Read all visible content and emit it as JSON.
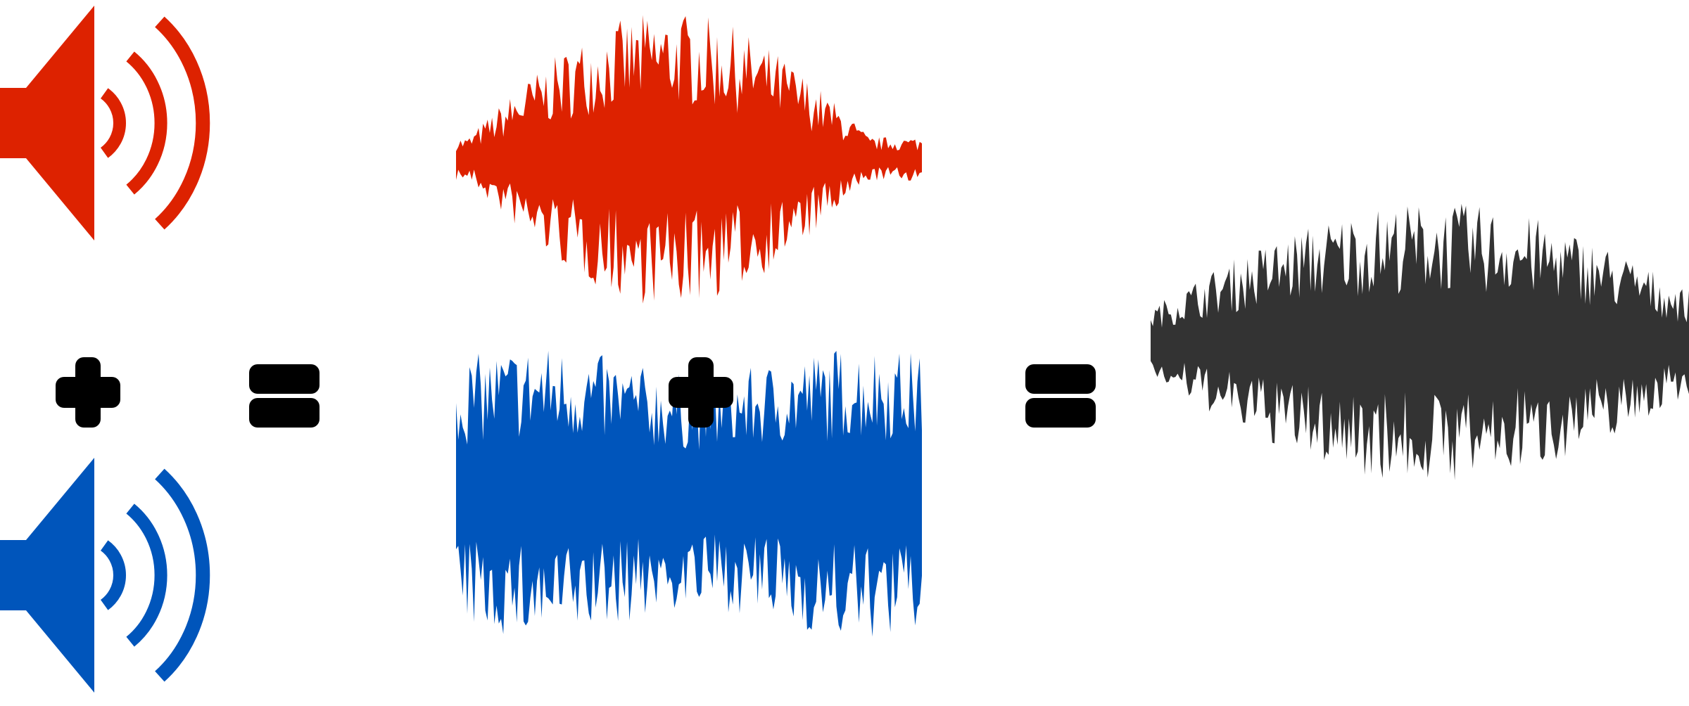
{
  "colors": {
    "signal_a": "#dd2200",
    "signal_b": "#0055bb",
    "result": "#333333",
    "operator": "#000000"
  },
  "operators": [
    "plus",
    "equals",
    "plus",
    "equals"
  ],
  "icons": [
    "speaker-icon",
    "speaker-icon"
  ]
}
